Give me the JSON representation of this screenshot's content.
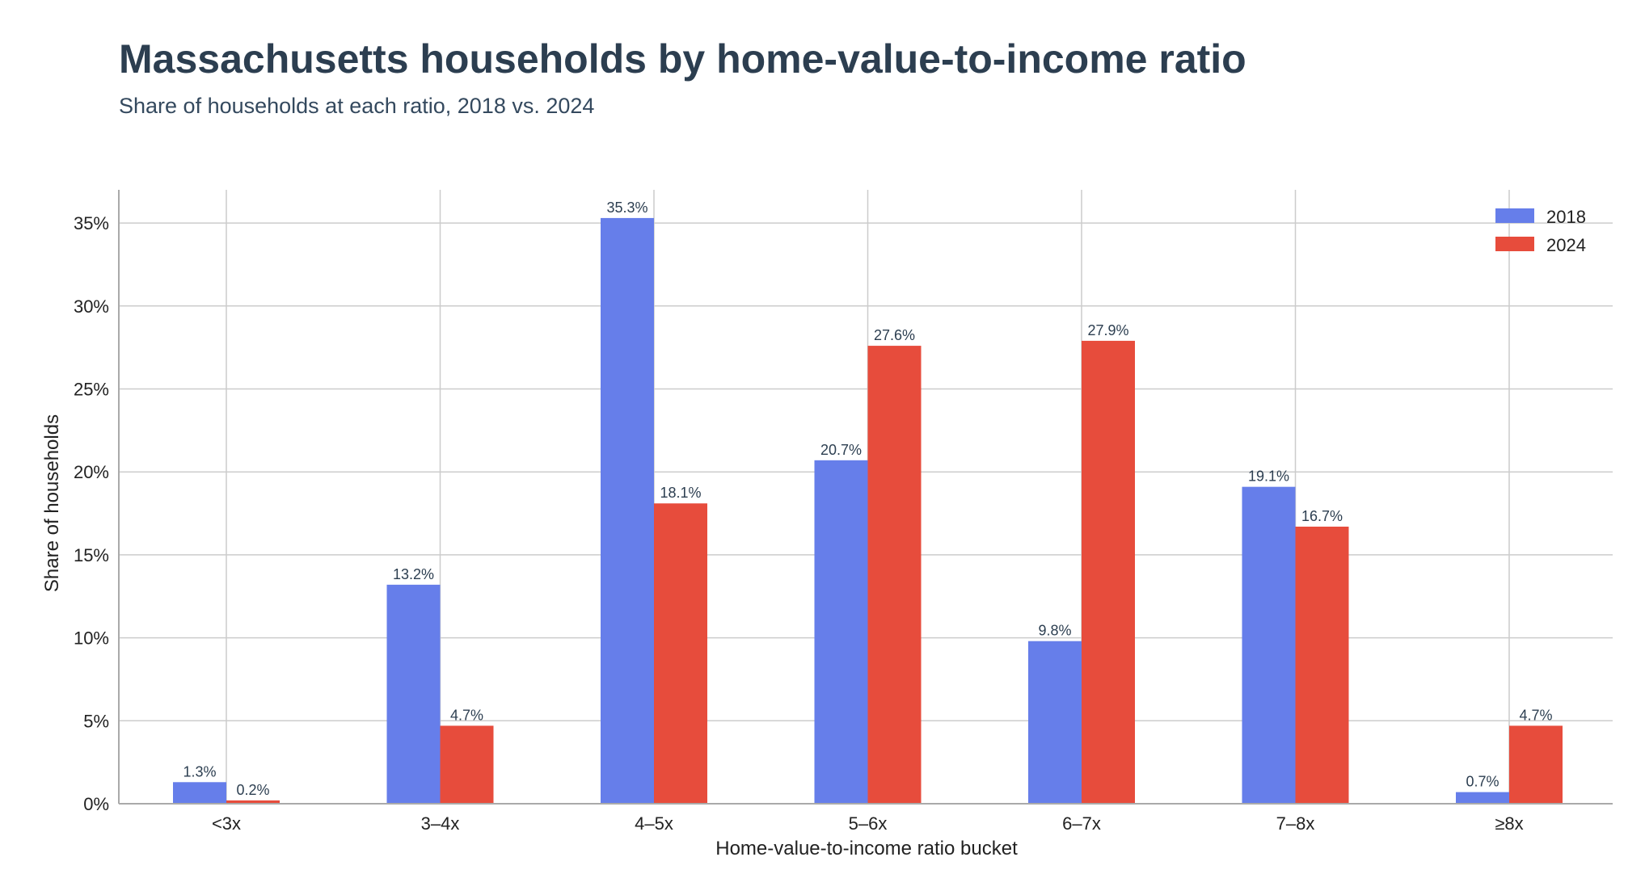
{
  "chart_data": {
    "type": "bar",
    "title": "Massachusetts households by home-value-to-income ratio",
    "subtitle": "Share of households at each ratio, 2018 vs. 2024",
    "xlabel": "Home-value-to-income ratio bucket",
    "ylabel": "Share of households",
    "categories": [
      "<3x",
      "3–4x",
      "4–5x",
      "5–6x",
      "6–7x",
      "7–8x",
      "≥8x"
    ],
    "series": [
      {
        "name": "2018",
        "color": "#667eea",
        "values": [
          1.3,
          13.2,
          35.3,
          20.7,
          9.8,
          19.1,
          0.7
        ]
      },
      {
        "name": "2024",
        "color": "#e74c3c",
        "values": [
          0.2,
          4.7,
          18.1,
          27.6,
          27.9,
          16.7,
          4.7
        ]
      }
    ],
    "ylim": [
      0,
      37
    ],
    "yticks": [
      0,
      5,
      10,
      15,
      20,
      25,
      30,
      35
    ],
    "ytick_labels": [
      "0%",
      "5%",
      "10%",
      "15%",
      "20%",
      "25%",
      "30%",
      "35%"
    ],
    "value_labels": [
      [
        "1.3%",
        "13.2%",
        "35.3%",
        "20.7%",
        "9.8%",
        "19.1%",
        "0.7%"
      ],
      [
        "0.2%",
        "4.7%",
        "18.1%",
        "27.6%",
        "27.9%",
        "16.7%",
        "4.7%"
      ]
    ],
    "grid": true,
    "legend_position": "top-right"
  }
}
